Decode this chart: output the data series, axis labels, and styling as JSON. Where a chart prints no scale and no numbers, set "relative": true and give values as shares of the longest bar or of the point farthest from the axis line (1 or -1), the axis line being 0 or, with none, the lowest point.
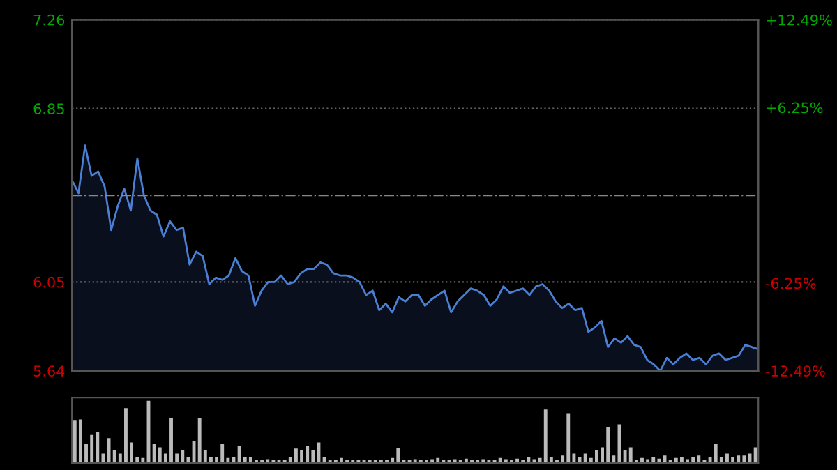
{
  "chart_data": [
    {
      "type": "area",
      "categories": [
        null,
        null,
        null,
        null,
        null,
        null,
        null,
        null,
        null,
        null,
        null,
        null,
        null,
        null,
        null,
        null,
        null,
        null,
        null,
        null,
        null,
        null,
        null,
        null,
        null,
        null,
        null,
        null,
        null,
        null,
        null,
        null,
        null,
        null,
        null,
        null,
        null,
        null,
        null,
        null,
        null,
        null,
        null,
        null,
        null,
        null,
        null,
        null,
        null,
        null,
        null,
        null,
        null,
        null,
        null,
        null,
        null,
        null,
        null,
        null,
        null,
        null,
        null,
        null,
        null,
        null,
        null,
        null,
        null,
        null,
        null,
        null,
        null,
        null,
        null,
        null,
        null,
        null,
        null,
        null,
        null,
        null,
        null,
        null,
        null,
        null,
        null,
        null,
        null,
        null,
        null,
        null,
        null,
        null,
        null,
        null,
        null,
        null,
        null,
        null,
        null,
        null,
        null,
        null,
        null,
        null
      ],
      "series": [
        {
          "color": "#4a7fd4",
          "values": [
            6.52,
            6.46,
            6.68,
            6.54,
            6.56,
            6.49,
            6.29,
            6.4,
            6.48,
            6.38,
            6.62,
            6.45,
            6.38,
            6.36,
            6.26,
            6.33,
            6.29,
            6.3,
            6.13,
            6.19,
            6.17,
            6.04,
            6.07,
            6.06,
            6.08,
            6.16,
            6.1,
            6.08,
            5.94,
            6.01,
            6.05,
            6.05,
            6.08,
            6.04,
            6.05,
            6.09,
            6.11,
            6.11,
            6.14,
            6.13,
            6.09,
            6.08,
            6.08,
            6.07,
            6.05,
            5.99,
            6.01,
            5.92,
            5.95,
            5.91,
            5.98,
            5.96,
            5.99,
            5.99,
            5.94,
            5.97,
            5.99,
            6.01,
            5.91,
            5.96,
            5.99,
            6.02,
            6.01,
            5.99,
            5.94,
            5.97,
            6.03,
            6.0,
            6.01,
            6.02,
            5.99,
            6.03,
            6.04,
            6.01,
            5.96,
            5.93,
            5.95,
            5.92,
            5.93,
            5.82,
            5.84,
            5.87,
            5.75,
            5.79,
            5.77,
            5.8,
            5.76,
            5.75,
            5.69,
            5.67,
            5.64,
            5.7,
            5.67,
            5.7,
            5.72,
            5.69,
            5.7,
            5.67,
            5.71,
            5.72,
            5.69,
            5.7,
            5.71,
            5.76,
            5.75,
            5.74
          ]
        }
      ],
      "ylim": [
        5.64,
        7.26
      ],
      "yticks": [
        5.64,
        6.05,
        6.85,
        7.26
      ],
      "y2lim": [
        -12.49,
        12.49
      ],
      "y2ticks": [
        {
          "value": -12.49,
          "label": "-12.49%"
        },
        {
          "value": -6.25,
          "label": "-6.25%"
        },
        {
          "value": 6.25,
          "label": "+6.25%"
        },
        {
          "value": 12.49,
          "label": "+12.49%"
        }
      ],
      "ref_lines": [
        {
          "axis": "y",
          "value": 6.45,
          "line_style": "dashdot"
        }
      ],
      "grid": "y",
      "tick_labels": "y"
    },
    {
      "type": "bar",
      "relative": true,
      "color": "#bbbbbb",
      "tick_labels": false,
      "categories": [
        null,
        null,
        null,
        null,
        null,
        null,
        null,
        null,
        null,
        null,
        null,
        null,
        null,
        null,
        null,
        null,
        null,
        null,
        null,
        null,
        null,
        null,
        null,
        null,
        null,
        null,
        null,
        null,
        null,
        null,
        null,
        null,
        null,
        null,
        null,
        null,
        null,
        null,
        null,
        null,
        null,
        null,
        null,
        null,
        null,
        null,
        null,
        null,
        null,
        null,
        null,
        null,
        null,
        null,
        null,
        null,
        null,
        null,
        null,
        null,
        null,
        null,
        null,
        null,
        null,
        null,
        null,
        null,
        null,
        null,
        null,
        null,
        null,
        null,
        null,
        null,
        null,
        null,
        null,
        null,
        null,
        null,
        null,
        null,
        null,
        null,
        null,
        null,
        null,
        null,
        null,
        null,
        null,
        null,
        null,
        null,
        null,
        null,
        null,
        null,
        null,
        null,
        null,
        null,
        null,
        null,
        null,
        null,
        null,
        null,
        null,
        null,
        null,
        null,
        null,
        null,
        null,
        null,
        null,
        null,
        null
      ],
      "values": [
        0.68,
        0.7,
        0.3,
        0.45,
        0.5,
        0.15,
        0.4,
        0.2,
        0.15,
        0.88,
        0.33,
        0.1,
        0.08,
        1.0,
        0.3,
        0.25,
        0.15,
        0.72,
        0.15,
        0.2,
        0.1,
        0.35,
        0.72,
        0.2,
        0.1,
        0.1,
        0.3,
        0.08,
        0.1,
        0.28,
        0.1,
        0.1,
        0.05,
        0.05,
        0.06,
        0.05,
        0.05,
        0.05,
        0.1,
        0.23,
        0.2,
        0.28,
        0.2,
        0.33,
        0.1,
        0.05,
        0.05,
        0.08,
        0.05,
        0.05,
        0.05,
        0.05,
        0.05,
        0.05,
        0.05,
        0.05,
        0.08,
        0.24,
        0.05,
        0.05,
        0.06,
        0.05,
        0.05,
        0.06,
        0.08,
        0.05,
        0.05,
        0.06,
        0.05,
        0.07,
        0.05,
        0.05,
        0.06,
        0.05,
        0.05,
        0.08,
        0.06,
        0.05,
        0.07,
        0.05,
        0.1,
        0.06,
        0.08,
        0.86,
        0.1,
        0.05,
        0.12,
        0.8,
        0.15,
        0.1,
        0.15,
        0.08,
        0.2,
        0.25,
        0.58,
        0.12,
        0.62,
        0.2,
        0.25,
        0.05,
        0.08,
        0.06,
        0.1,
        0.07,
        0.12,
        0.05,
        0.08,
        0.1,
        0.06,
        0.09,
        0.12,
        0.05,
        0.1,
        0.3,
        0.1,
        0.15,
        0.1,
        0.12,
        0.12,
        0.15,
        0.25
      ]
    }
  ]
}
